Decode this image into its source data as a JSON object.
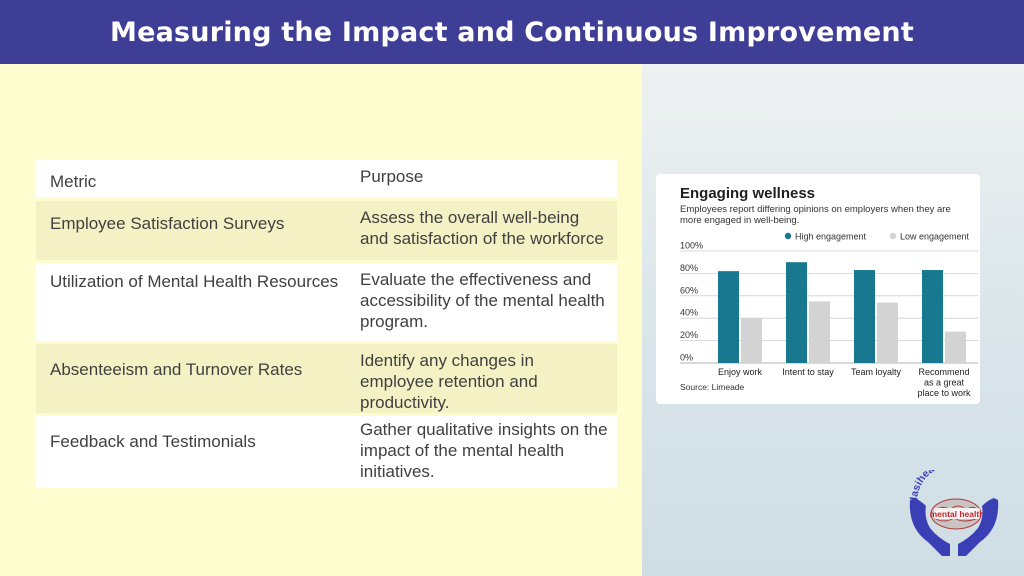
{
  "header": {
    "title": "Measuring the Impact and Continuous Improvement"
  },
  "table": {
    "columns": [
      "Metric",
      "Purpose"
    ],
    "rows": [
      {
        "metric": "Employee Satisfaction Surveys",
        "purpose": "Assess the overall well-being and satisfaction of the workforce"
      },
      {
        "metric": "Utilization of Mental Health Resources",
        "purpose": "Evaluate the effectiveness and accessibility of the mental health program."
      },
      {
        "metric": "Absenteeism and Turnover Rates",
        "purpose": "Identify any changes in employee retention and productivity."
      },
      {
        "metric": "Feedback and Testimonials",
        "purpose": "Gather qualitative insights on the impact of the mental health initiatives."
      }
    ]
  },
  "chart_data": {
    "type": "bar",
    "title": "Engaging wellness",
    "subtitle": "Employees report differing opinions on employers when they are more engaged in well-being.",
    "categories": [
      "Enjoy work",
      "Intent to stay",
      "Team loyalty",
      "Recommend as a great place to work"
    ],
    "series": [
      {
        "name": "High engagement",
        "color": "#17788f",
        "values": [
          82,
          90,
          83,
          83
        ]
      },
      {
        "name": "Low engagement",
        "color": "#d3d3d3",
        "values": [
          40,
          55,
          54,
          28
        ]
      }
    ],
    "yticks": [
      "0%",
      "20%",
      "40%",
      "60%",
      "80%",
      "100%"
    ],
    "ylim": [
      0,
      100
    ],
    "legend": "top-right",
    "grid": true,
    "source": "Source: Limeade"
  },
  "logo": {
    "text_top": "tulasihealthcare",
    "text_badge": "mental health",
    "color": "#3b3fb5"
  }
}
